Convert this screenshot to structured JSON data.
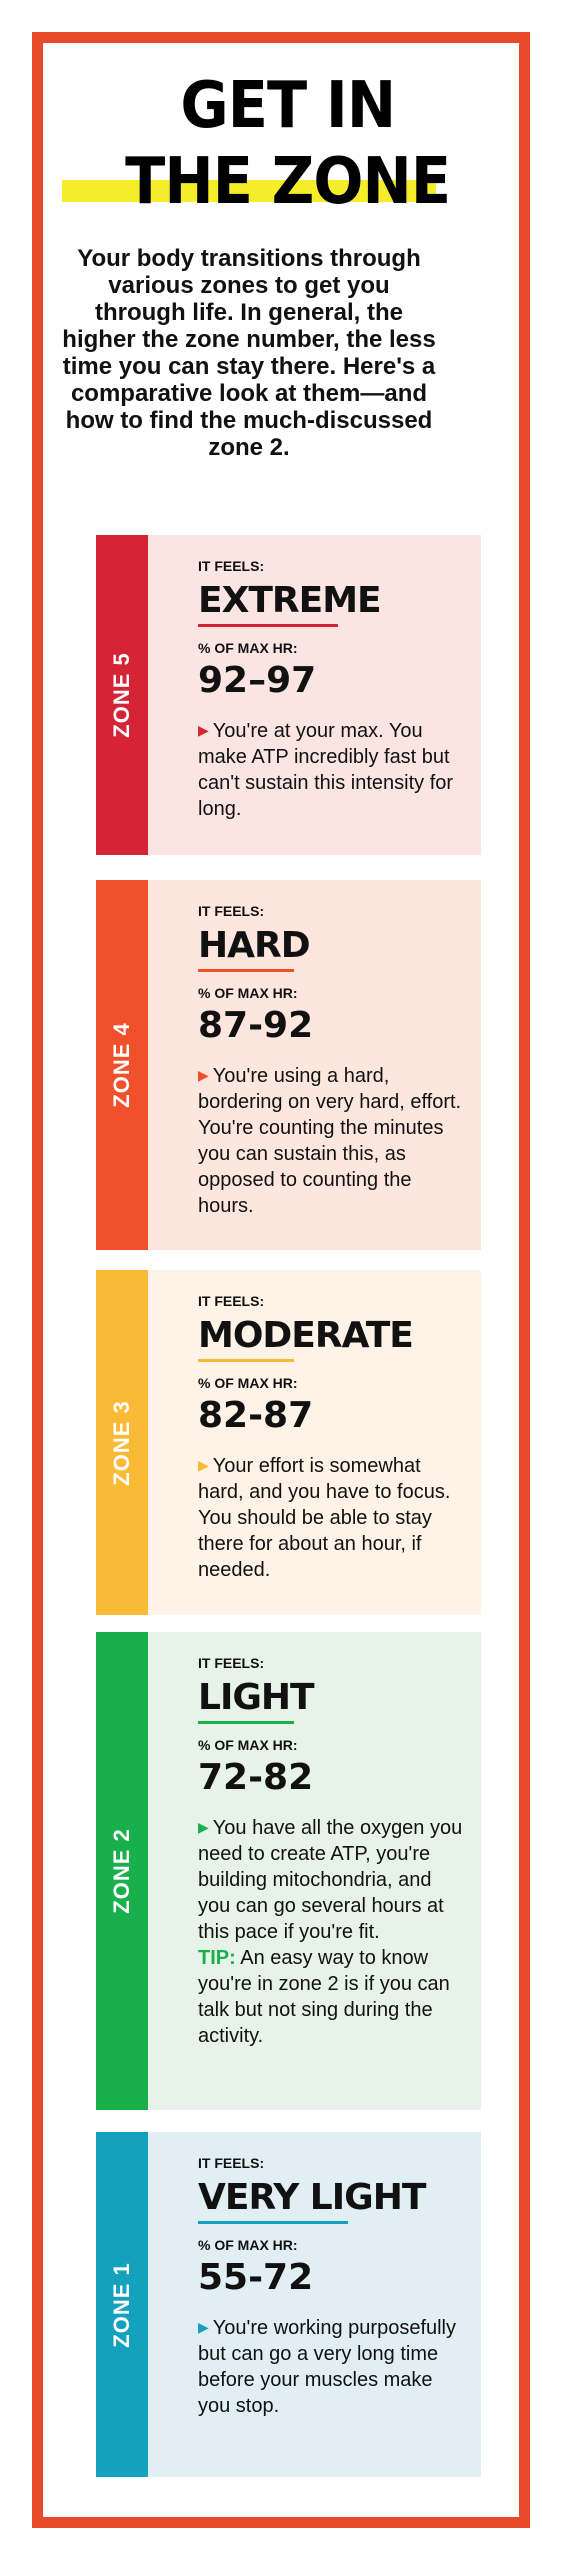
{
  "header": {
    "title_line1": "GET IN",
    "title_line2": "THE ZONE",
    "intro": "Your body transitions through various zones to get you through life. In general, the higher the zone number, the less time you can stay there. Here's a comparative look at them—and how to find the much-discussed zone 2."
  },
  "labels": {
    "feels": "IT FEELS:",
    "max_hr": "% OF MAX HR:"
  },
  "zones": [
    {
      "name": "ZONE 5",
      "feel": "EXTREME",
      "range": "92–97",
      "description": "You're at your max. You make ATP incredibly fast but can't sustain this intensity for long.",
      "band_color": "#d42435",
      "panel_color": "#fbe5e3"
    },
    {
      "name": "ZONE 4",
      "feel": "HARD",
      "range": "87-92",
      "description": "You're using a hard, bordering on very hard, effort. You're counting the minutes you can sustain this, as opposed to counting the hours.",
      "band_color": "#f0502a",
      "panel_color": "#fde6de"
    },
    {
      "name": "ZONE 3",
      "feel": "MODERATE",
      "range": "82-87",
      "description": "Your effort is somewhat hard, and you have to focus. You should be able to stay there for about an hour, if needed.",
      "band_color": "#fbba35",
      "panel_color": "#fef3e6"
    },
    {
      "name": "ZONE 2",
      "feel": "LIGHT",
      "range": "72-82",
      "description": "You have all the oxygen you need to create ATP, you're building mitochondria, and you can go several hours at this pace if you're fit.",
      "tip_label": "TIP:",
      "tip_text": "An easy way to know you're in zone 2 is if you can talk but not sing during the activity.",
      "band_color": "#19b04b",
      "panel_color": "#e7f3e8"
    },
    {
      "name": "ZONE 1",
      "feel": "VERY LIGHT",
      "range": "55-72",
      "description": "You're working purposefully but can go a very long time before your muscles make you stop.",
      "band_color": "#13a1bd",
      "panel_color": "#e1eff4"
    }
  ]
}
